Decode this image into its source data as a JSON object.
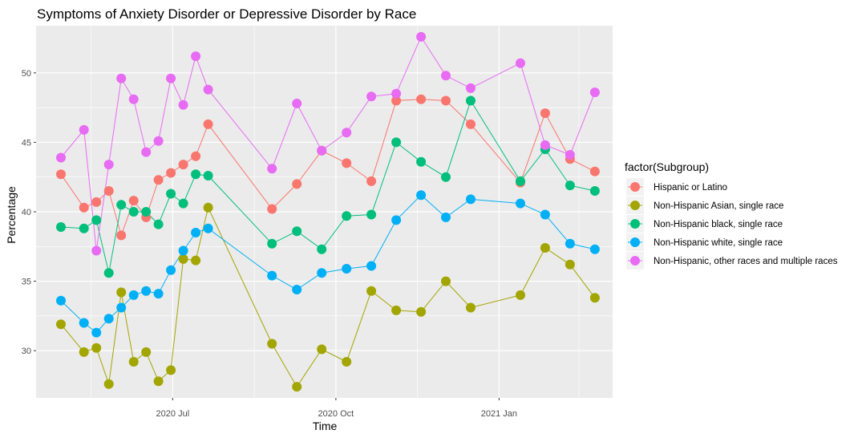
{
  "chart_data": {
    "type": "line",
    "title": "Symptoms of Anxiety Disorder or Depressive Disorder by Race",
    "xlabel": "Time",
    "ylabel": "Percentage",
    "x_tick_labels": [
      "2020 Jul",
      "2020 Oct",
      "2021 Jan"
    ],
    "y_tick_labels": [
      "30",
      "35",
      "40",
      "45",
      "50"
    ],
    "y_ticks": [
      30,
      35,
      40,
      45,
      50
    ],
    "xlim": [
      "2020-04-15",
      "2021-03-06"
    ],
    "ylim": [
      26.6,
      53.4
    ],
    "grid": true,
    "legend_title": "factor(Subgroup)",
    "legend_position": "right",
    "x": [
      "2020-04-29",
      "2020-05-12",
      "2020-05-19",
      "2020-05-26",
      "2020-06-02",
      "2020-06-09",
      "2020-06-16",
      "2020-06-23",
      "2020-06-30",
      "2020-07-07",
      "2020-07-14",
      "2020-07-21",
      "2020-08-26",
      "2020-09-09",
      "2020-09-23",
      "2020-10-07",
      "2020-10-21",
      "2020-11-04",
      "2020-11-18",
      "2020-12-02",
      "2020-12-16",
      "2021-01-13",
      "2021-01-27",
      "2021-02-10",
      "2021-02-24"
    ],
    "series": [
      {
        "name": "Hispanic or Latino",
        "color": "#F8766D",
        "values": [
          42.7,
          40.3,
          40.7,
          41.5,
          38.3,
          40.8,
          39.6,
          42.3,
          42.8,
          43.4,
          44.0,
          46.3,
          40.2,
          42.0,
          44.4,
          43.5,
          42.2,
          48.0,
          48.1,
          48.0,
          46.3,
          42.1,
          47.1,
          43.8,
          42.9
        ]
      },
      {
        "name": "Non-Hispanic Asian, single race",
        "color": "#A3A500",
        "values": [
          31.9,
          29.9,
          30.2,
          27.6,
          34.2,
          29.2,
          29.9,
          27.8,
          28.6,
          36.6,
          36.5,
          40.3,
          30.5,
          27.4,
          30.1,
          29.2,
          34.3,
          32.9,
          32.8,
          35.0,
          33.1,
          34.0,
          37.4,
          36.2,
          33.8
        ]
      },
      {
        "name": "Non-Hispanic black, single race",
        "color": "#00BF7D",
        "values": [
          38.9,
          38.8,
          39.4,
          35.6,
          40.5,
          40.0,
          40.0,
          39.1,
          41.3,
          40.6,
          42.7,
          42.6,
          37.7,
          38.6,
          37.3,
          39.7,
          39.8,
          45.0,
          43.6,
          42.5,
          48.0,
          42.2,
          44.5,
          41.9,
          41.5
        ]
      },
      {
        "name": "Non-Hispanic white, single race",
        "color": "#00B0F6",
        "values": [
          33.6,
          32.0,
          31.3,
          32.3,
          33.1,
          34.0,
          34.3,
          34.1,
          35.8,
          37.2,
          38.5,
          38.8,
          35.4,
          34.4,
          35.6,
          35.9,
          36.1,
          39.4,
          41.2,
          39.6,
          40.9,
          40.6,
          39.8,
          37.7,
          37.3
        ]
      },
      {
        "name": "Non-Hispanic, other races and multiple races",
        "color": "#E76BF3",
        "values": [
          43.9,
          45.9,
          37.2,
          43.4,
          49.6,
          48.1,
          44.3,
          45.1,
          49.6,
          47.7,
          51.2,
          48.8,
          43.1,
          47.8,
          44.4,
          45.7,
          48.3,
          48.5,
          52.6,
          49.8,
          48.9,
          50.7,
          44.8,
          44.1,
          48.6
        ]
      }
    ]
  }
}
